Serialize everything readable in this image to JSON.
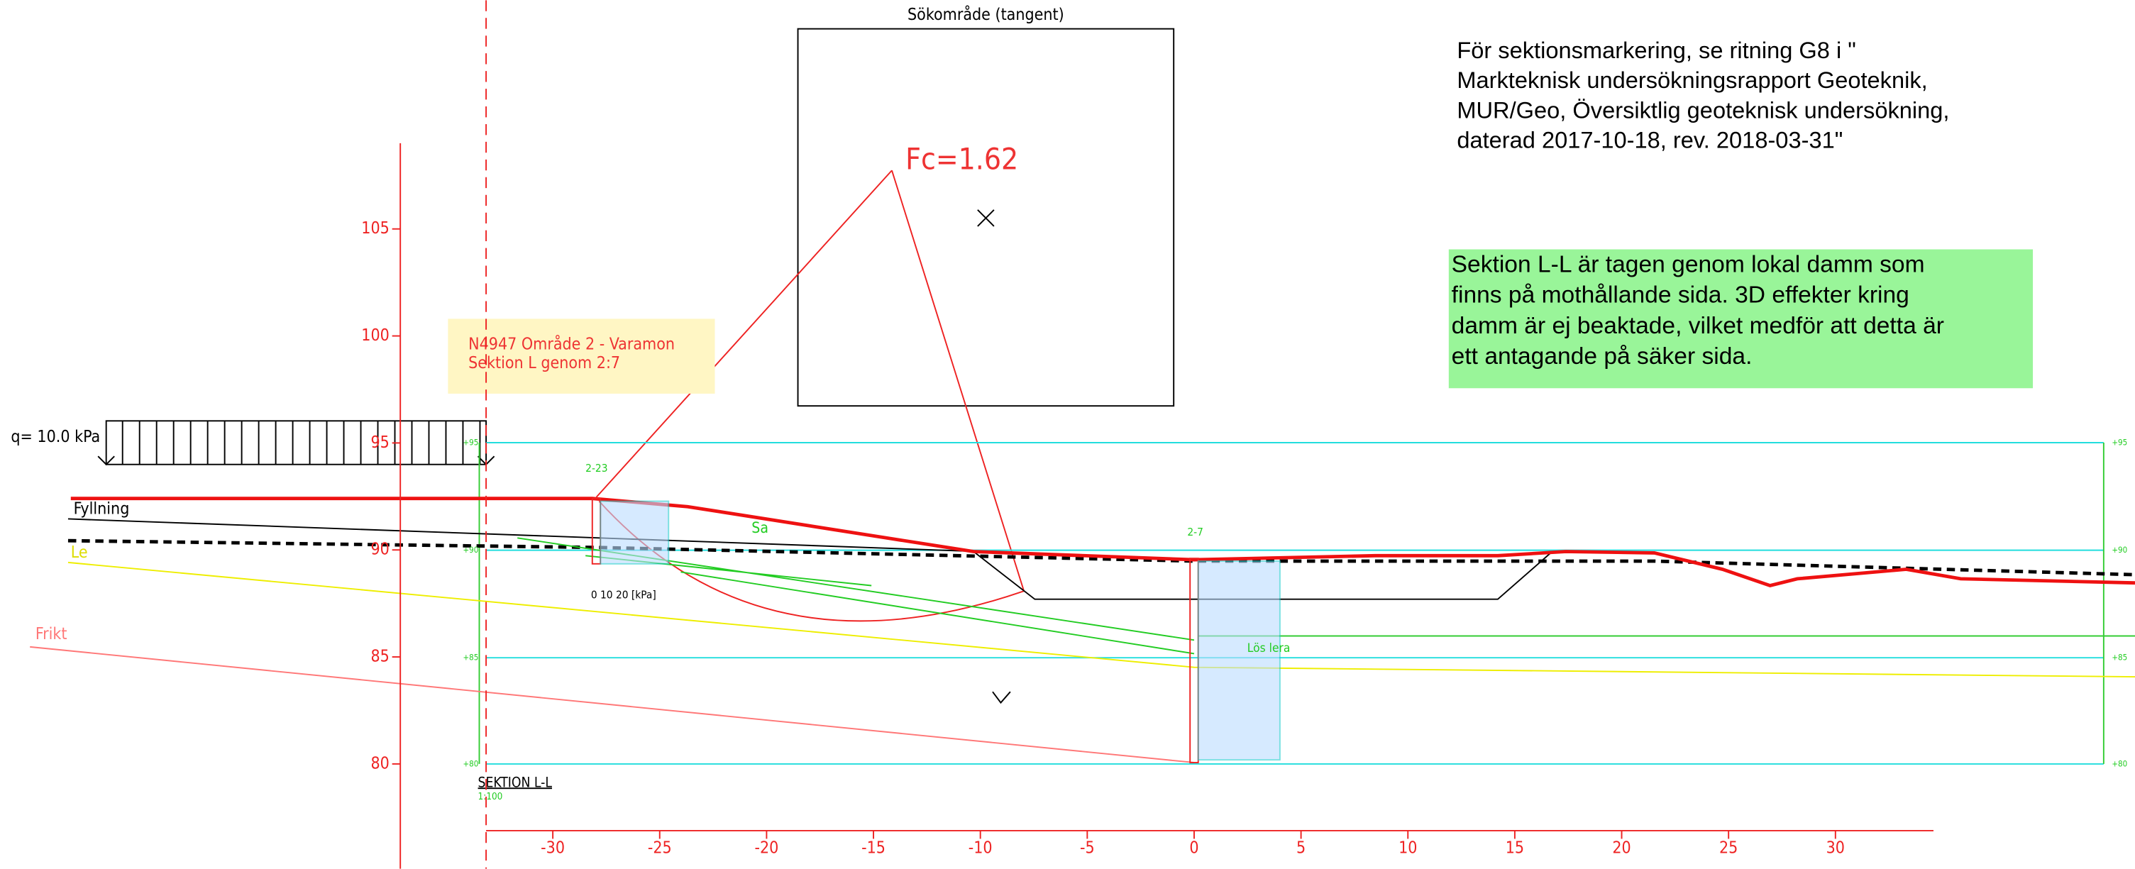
{
  "search_title": "Sökområde (tangent)",
  "safety_factor": "Fc=1.62",
  "reference_note": [
    "För sektionsmarkering, se ritning G8 i \"",
    "Markteknisk  undersökningsrapport  Geoteknik,",
    "MUR/Geo, Översiktlig geoteknisk  undersökning,",
    "daterad  2017-10-18, rev. 2018-03-31\""
  ],
  "section_note": [
    "Sektion L-L är tagen genom lokal damm som",
    "finns på mothållande sida. 3D effekter kring",
    "damm är ej beaktade, vilket medför att detta är",
    "ett antagande på säker sida."
  ],
  "project_label": [
    "N4947 Område 2 - Varamon",
    "Sektion L genom 2:7"
  ],
  "load_label": "q= 10.0  kPa",
  "layers": [
    "Fyllning",
    "Le",
    "Frikt",
    "Sa",
    "Lös lera"
  ],
  "boreholes": [
    "2-23",
    "2-7"
  ],
  "kpa_scale": "0   10   20 [kPa]",
  "section_title": "SEKTION L-L",
  "section_scale": "1:100",
  "level_labels": [
    "+95",
    "+90",
    "+85",
    "+80"
  ],
  "elevation_ticks": [
    105,
    100,
    95,
    90,
    85,
    80
  ],
  "distance_ticks": [
    -30,
    -25,
    -20,
    -15,
    -10,
    -5,
    0,
    5,
    10,
    15,
    20,
    25,
    30
  ]
}
